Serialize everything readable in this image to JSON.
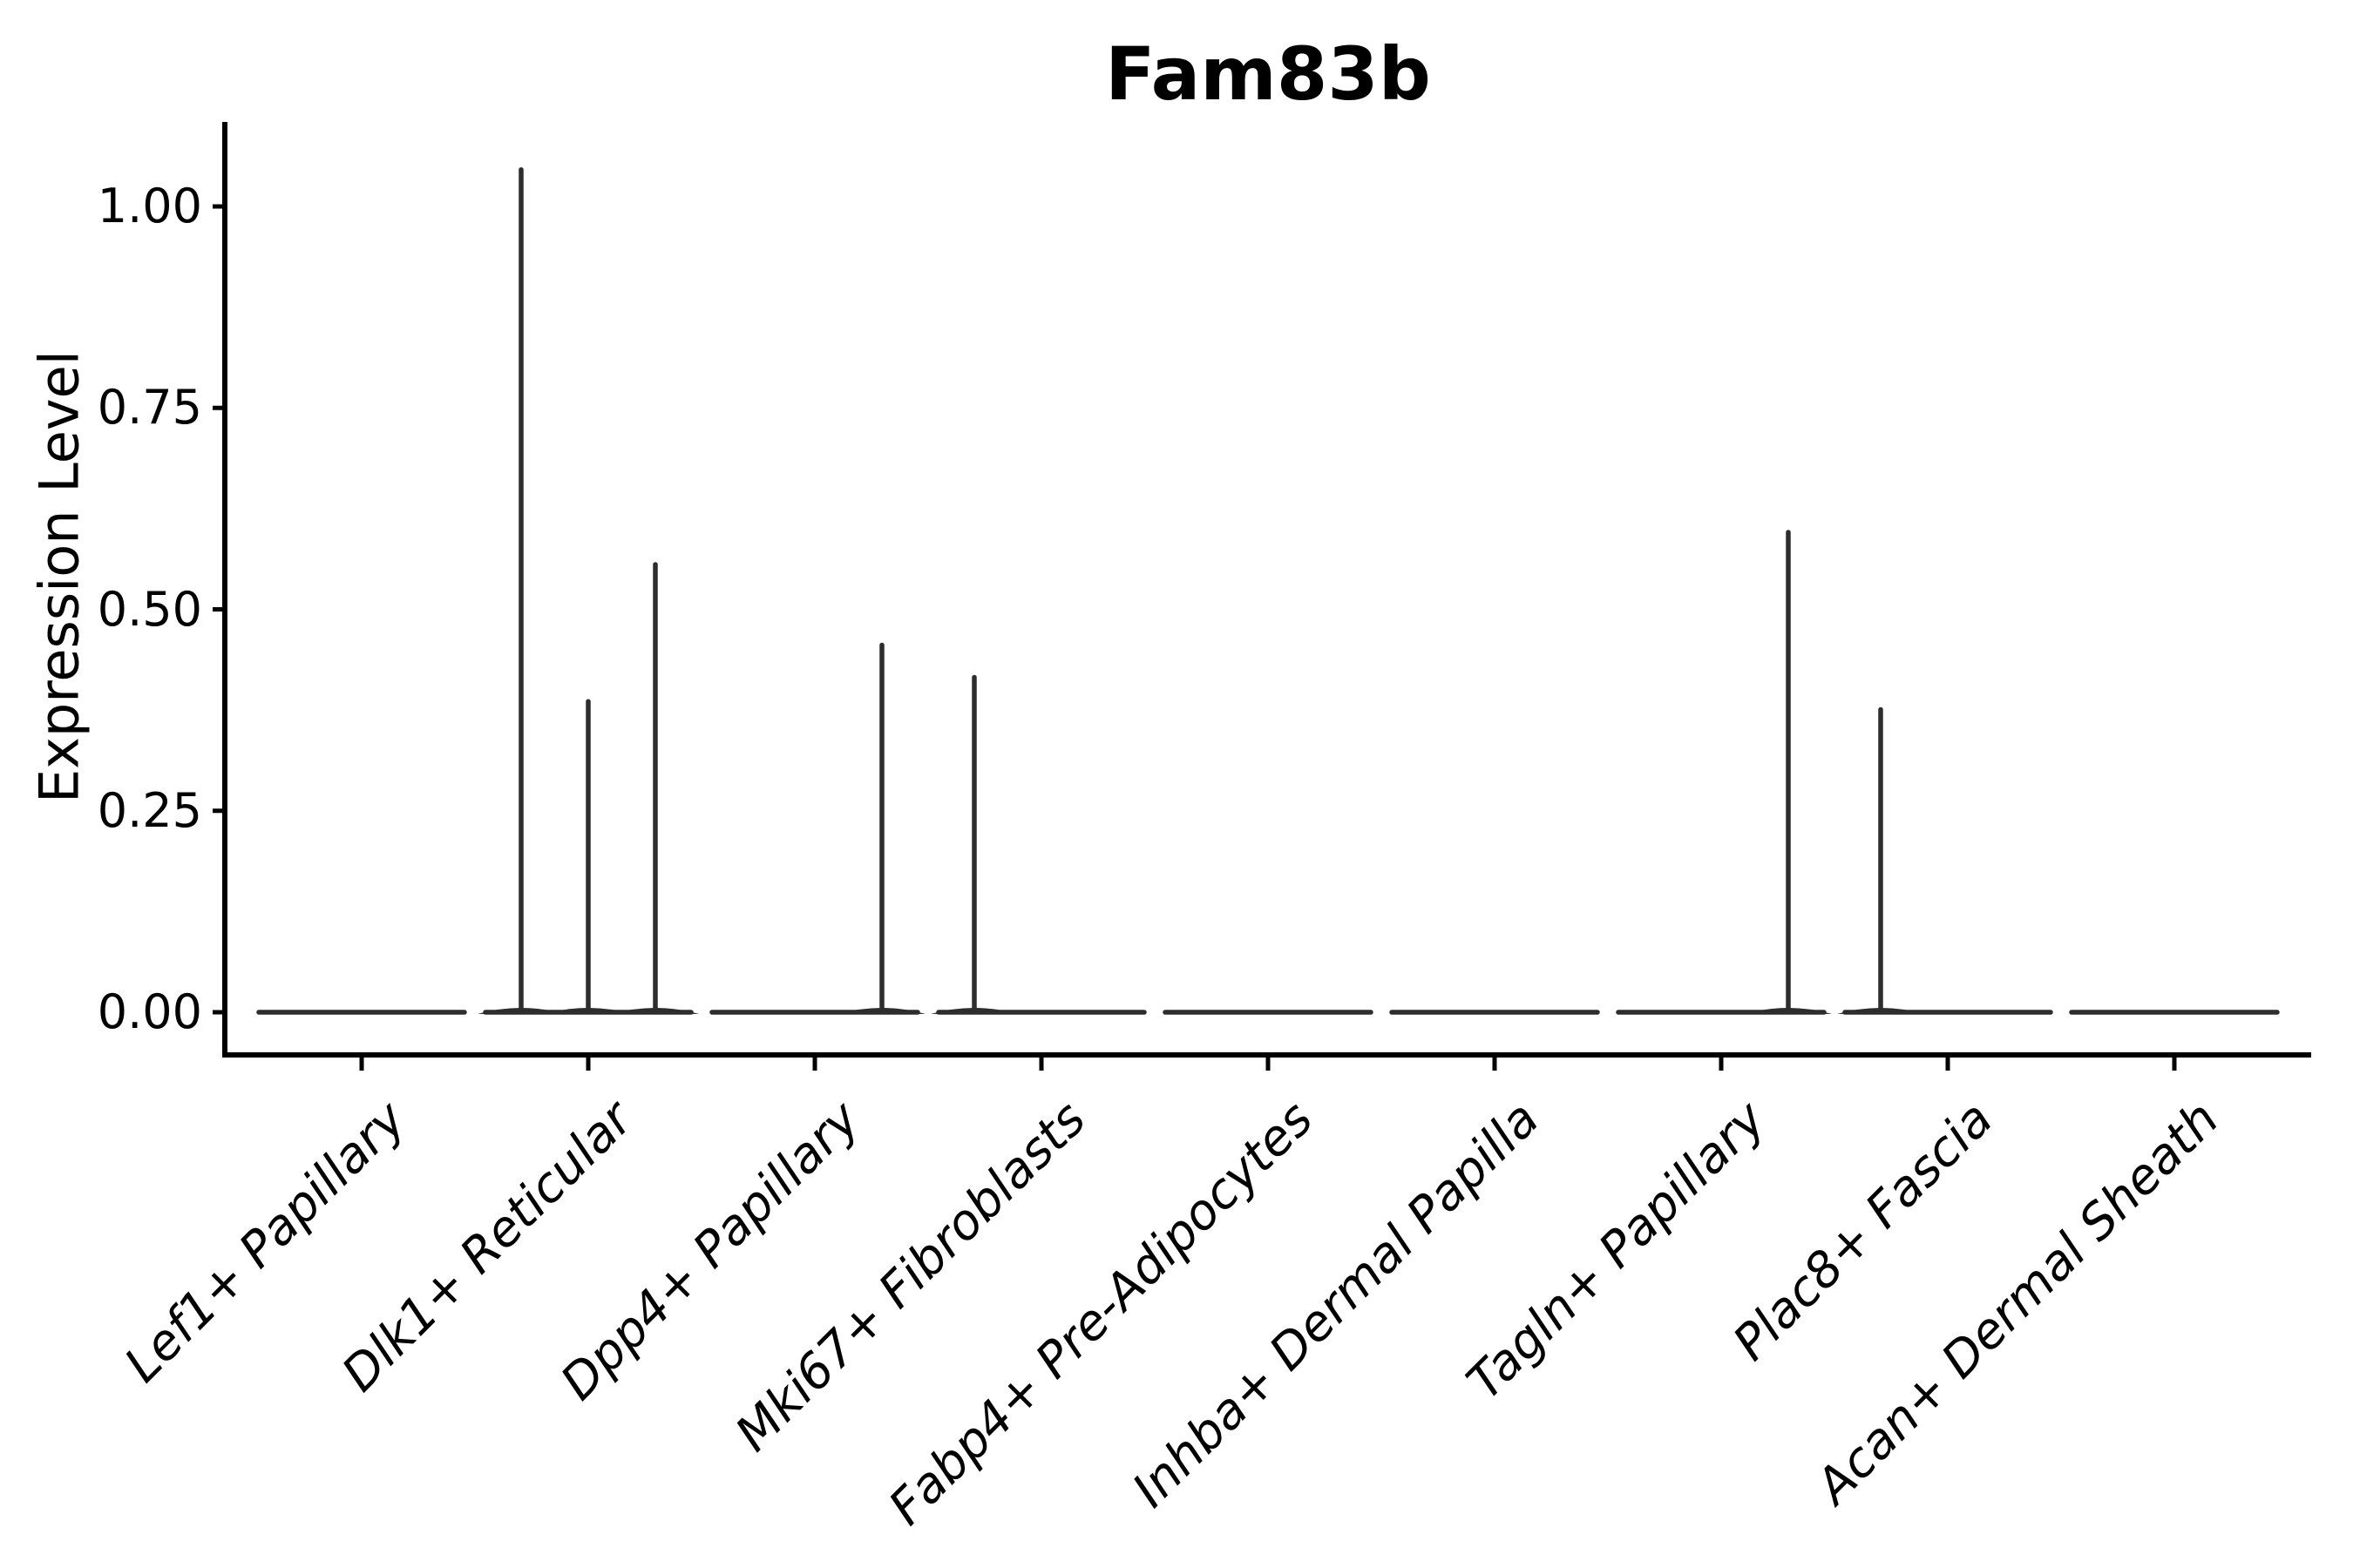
{
  "figure": {
    "background": "#ffffff"
  },
  "chart_data": {
    "type": "violin",
    "title": "Fam83b",
    "ylabel": "Expression Level",
    "xlabel": "",
    "categories": [
      "Lef1+ Papillary",
      "Dlk1+ Reticular",
      "Dpp4+ Papillary",
      "Mki67+ Fibroblasts",
      "Fabp4+ Pre-Adipocytes",
      "Inhba+ Dermal Papilla",
      "Tagln+ Papillary",
      "Plac8+ Fascia",
      "Acan+ Dermal Sheath"
    ],
    "ytick_labels": [
      "0.00",
      "0.25",
      "0.50",
      "0.75",
      "1.00"
    ],
    "yticks": [
      0.0,
      0.25,
      0.5,
      0.75,
      1.0
    ],
    "ylim": [
      -0.06,
      1.1
    ],
    "grid": false,
    "legend_position": "none",
    "groups_per_category": 3,
    "group_positions": [
      "left",
      "center",
      "right"
    ],
    "violins": [
      {
        "category": "Lef1+ Papillary",
        "baseline_value": 0,
        "spikes": []
      },
      {
        "category": "Dlk1+ Reticular",
        "baseline_value": 0,
        "spikes": [
          {
            "position": "left",
            "max": 1.05
          },
          {
            "position": "center",
            "max": 0.39
          },
          {
            "position": "right",
            "max": 0.56
          }
        ]
      },
      {
        "category": "Dpp4+ Papillary",
        "baseline_value": 0,
        "spikes": [
          {
            "position": "right",
            "max": 0.46
          }
        ]
      },
      {
        "category": "Mki67+ Fibroblasts",
        "baseline_value": 0,
        "spikes": [
          {
            "position": "left",
            "max": 0.42
          }
        ]
      },
      {
        "category": "Fabp4+ Pre-Adipocytes",
        "baseline_value": 0,
        "spikes": []
      },
      {
        "category": "Inhba+ Dermal Papilla",
        "baseline_value": 0,
        "spikes": []
      },
      {
        "category": "Tagln+ Papillary",
        "baseline_value": 0,
        "spikes": [
          {
            "position": "right",
            "max": 0.6
          }
        ]
      },
      {
        "category": "Plac8+ Fascia",
        "baseline_value": 0,
        "spikes": [
          {
            "position": "left",
            "max": 0.38
          }
        ]
      },
      {
        "category": "Acan+ Dermal Sheath",
        "baseline_value": 0,
        "spikes": []
      }
    ],
    "colors": {
      "violin_line": "#2d2d2d",
      "axis": "#000000",
      "text": "#000000",
      "background": "#ffffff"
    }
  }
}
